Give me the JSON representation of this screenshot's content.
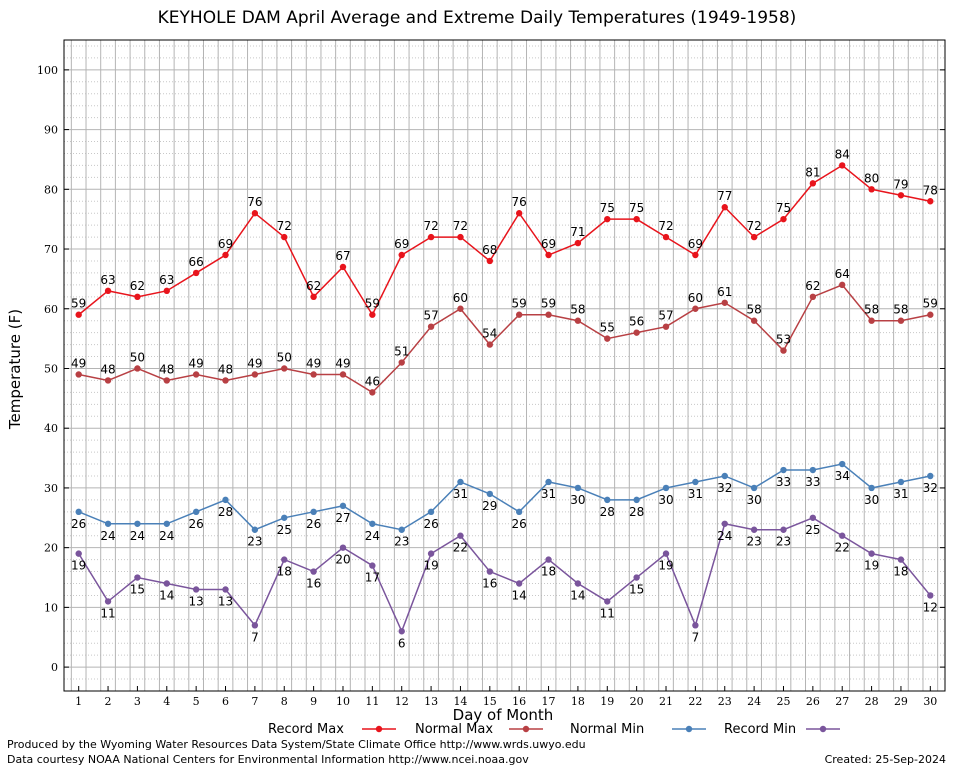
{
  "title": "KEYHOLE DAM April Average and Extreme Daily Temperatures (1949-1958)",
  "footer": {
    "produced_by": "Produced by the Wyoming Water Resources Data System/State Climate Office http://www.wrds.uwyo.edu",
    "data_courtesy": "Data courtesy NOAA National Centers for Environmental Information http://www.ncei.noaa.gov",
    "created": "Created:  25-Sep-2024"
  },
  "chart_data": {
    "type": "line",
    "title": "KEYHOLE DAM April Average and Extreme Daily Temperatures (1949-1958)",
    "xlabel": "Day of Month",
    "ylabel": "Temperature (F)",
    "x": [
      1,
      2,
      3,
      4,
      5,
      6,
      7,
      8,
      9,
      10,
      11,
      12,
      13,
      14,
      15,
      16,
      17,
      18,
      19,
      20,
      21,
      22,
      23,
      24,
      25,
      26,
      27,
      28,
      29,
      30
    ],
    "xlim": [
      0.5,
      30.5
    ],
    "ylim": [
      -4,
      105
    ],
    "yticks": [
      0,
      10,
      20,
      30,
      40,
      50,
      60,
      70,
      80,
      90,
      100
    ],
    "grid": true,
    "legend_position": "bottom",
    "series": [
      {
        "name": "Record Max",
        "color": "#e8141c",
        "label_position": "above",
        "values": [
          59,
          63,
          62,
          63,
          66,
          69,
          76,
          72,
          62,
          67,
          59,
          69,
          72,
          72,
          68,
          76,
          69,
          71,
          75,
          75,
          72,
          69,
          77,
          72,
          75,
          81,
          84,
          80,
          79,
          78
        ]
      },
      {
        "name": "Normal Max",
        "color": "#b84044",
        "label_position": "above",
        "values": [
          49,
          48,
          50,
          48,
          49,
          48,
          49,
          50,
          49,
          49,
          46,
          51,
          57,
          60,
          54,
          59,
          59,
          58,
          55,
          56,
          57,
          60,
          61,
          58,
          53,
          62,
          64,
          58,
          58,
          59
        ]
      },
      {
        "name": "Normal Min",
        "color": "#4a80b8",
        "label_position": "below",
        "values": [
          26,
          24,
          24,
          24,
          26,
          28,
          23,
          25,
          26,
          27,
          24,
          23,
          26,
          31,
          29,
          26,
          31,
          30,
          28,
          28,
          30,
          31,
          32,
          30,
          33,
          33,
          34,
          30,
          31,
          32
        ]
      },
      {
        "name": "Record Min",
        "color": "#7a559c",
        "label_position": "below",
        "values": [
          19,
          11,
          15,
          14,
          13,
          13,
          7,
          18,
          16,
          20,
          17,
          6,
          19,
          22,
          16,
          14,
          18,
          14,
          11,
          15,
          19,
          7,
          24,
          23,
          23,
          25,
          22,
          19,
          18,
          12
        ]
      }
    ]
  }
}
